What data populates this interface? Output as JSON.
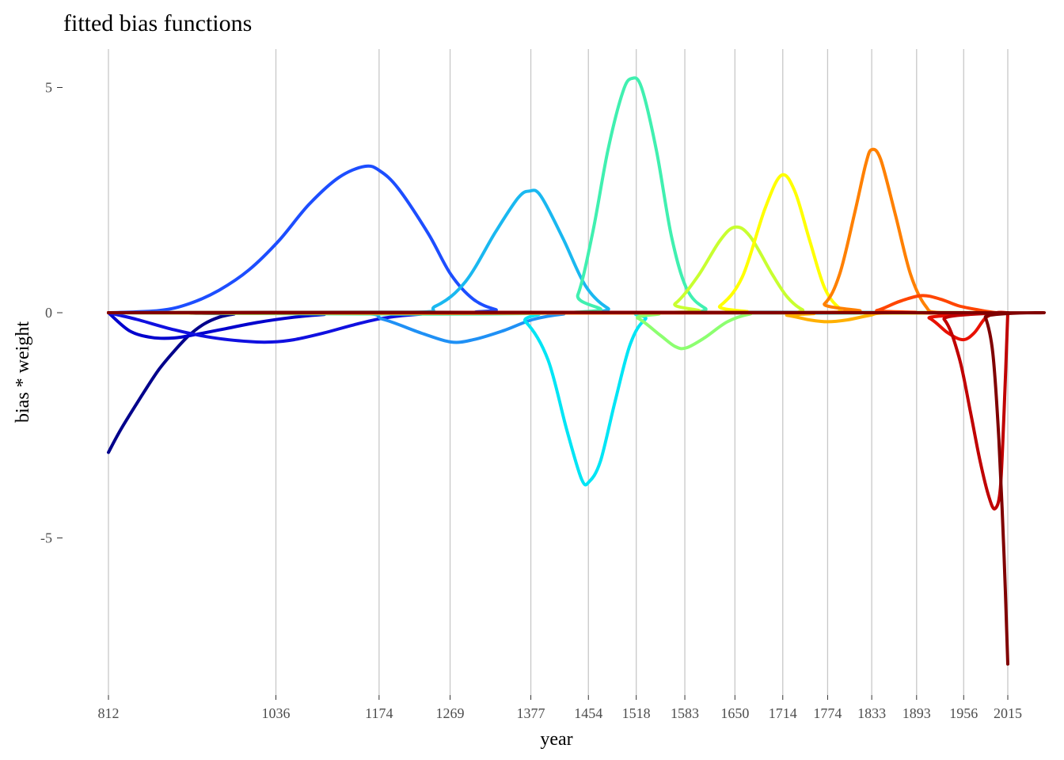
{
  "chart_data": {
    "type": "line",
    "title": "fitted bias functions",
    "xlabel": "year",
    "ylabel": "bias * weight",
    "x_ticks": [
      812,
      1036,
      1174,
      1269,
      1377,
      1454,
      1518,
      1583,
      1650,
      1714,
      1774,
      1833,
      1893,
      1956,
      2015
    ],
    "y_ticks": [
      -5,
      0,
      5
    ],
    "y_tick_labels": [
      "-5",
      "0",
      "5"
    ],
    "xlim": [
      812,
      2015
    ],
    "ylim": [
      -8,
      5.5
    ],
    "grid": "vertical-major",
    "legend": "none",
    "series": [
      {
        "color": "#00008B",
        "points": [
          [
            812,
            -3.1
          ],
          [
            830,
            -2.55
          ],
          [
            860,
            -1.75
          ],
          [
            880,
            -1.25
          ],
          [
            900,
            -0.85
          ],
          [
            920,
            -0.5
          ],
          [
            940,
            -0.25
          ],
          [
            960,
            -0.1
          ],
          [
            980,
            -0.03
          ],
          [
            1000,
            0
          ],
          [
            2015,
            0
          ]
        ]
      },
      {
        "color": "#0000CD",
        "points": [
          [
            812,
            0
          ],
          [
            840,
            -0.4
          ],
          [
            870,
            -0.55
          ],
          [
            900,
            -0.56
          ],
          [
            930,
            -0.48
          ],
          [
            970,
            -0.35
          ],
          [
            1010,
            -0.22
          ],
          [
            1060,
            -0.1
          ],
          [
            1100,
            -0.04
          ],
          [
            1140,
            0
          ],
          [
            2015,
            0
          ]
        ]
      },
      {
        "color": "#1010E0",
        "points": [
          [
            812,
            0
          ],
          [
            850,
            -0.15
          ],
          [
            900,
            -0.38
          ],
          [
            950,
            -0.55
          ],
          [
            1000,
            -0.64
          ],
          [
            1030,
            -0.65
          ],
          [
            1060,
            -0.6
          ],
          [
            1100,
            -0.45
          ],
          [
            1140,
            -0.27
          ],
          [
            1180,
            -0.12
          ],
          [
            1230,
            -0.03
          ],
          [
            1280,
            0
          ],
          [
            2015,
            0
          ]
        ]
      },
      {
        "color": "#1D4EFF",
        "points": [
          [
            812,
            0
          ],
          [
            880,
            0.05
          ],
          [
            920,
            0.2
          ],
          [
            960,
            0.5
          ],
          [
            1000,
            0.95
          ],
          [
            1040,
            1.6
          ],
          [
            1080,
            2.4
          ],
          [
            1120,
            3.0
          ],
          [
            1155,
            3.25
          ],
          [
            1175,
            3.15
          ],
          [
            1200,
            2.75
          ],
          [
            1240,
            1.75
          ],
          [
            1270,
            0.85
          ],
          [
            1300,
            0.3
          ],
          [
            1330,
            0.07
          ],
          [
            1360,
            0
          ],
          [
            2015,
            0
          ]
        ]
      },
      {
        "color": "#1F90F5",
        "points": [
          [
            812,
            0
          ],
          [
            1130,
            0
          ],
          [
            1180,
            -0.15
          ],
          [
            1230,
            -0.45
          ],
          [
            1270,
            -0.65
          ],
          [
            1300,
            -0.6
          ],
          [
            1340,
            -0.4
          ],
          [
            1380,
            -0.15
          ],
          [
            1420,
            -0.03
          ],
          [
            1460,
            0
          ],
          [
            2015,
            0
          ]
        ]
      },
      {
        "color": "#1AB8F0",
        "points": [
          [
            812,
            0
          ],
          [
            1200,
            0
          ],
          [
            1250,
            0.15
          ],
          [
            1290,
            0.7
          ],
          [
            1330,
            1.8
          ],
          [
            1360,
            2.55
          ],
          [
            1375,
            2.7
          ],
          [
            1390,
            2.6
          ],
          [
            1420,
            1.65
          ],
          [
            1450,
            0.6
          ],
          [
            1480,
            0.1
          ],
          [
            1510,
            0
          ],
          [
            2015,
            0
          ]
        ]
      },
      {
        "color": "#00E5F5",
        "points": [
          [
            812,
            0
          ],
          [
            1340,
            0
          ],
          [
            1370,
            -0.2
          ],
          [
            1400,
            -1.05
          ],
          [
            1425,
            -2.6
          ],
          [
            1445,
            -3.7
          ],
          [
            1455,
            -3.75
          ],
          [
            1470,
            -3.3
          ],
          [
            1490,
            -1.95
          ],
          [
            1510,
            -0.7
          ],
          [
            1530,
            -0.15
          ],
          [
            1560,
            0
          ],
          [
            2015,
            0
          ]
        ]
      },
      {
        "color": "#40F0B0",
        "points": [
          [
            812,
            0
          ],
          [
            1420,
            0
          ],
          [
            1440,
            0.4
          ],
          [
            1460,
            1.8
          ],
          [
            1480,
            3.6
          ],
          [
            1500,
            4.9
          ],
          [
            1512,
            5.2
          ],
          [
            1525,
            5.0
          ],
          [
            1545,
            3.6
          ],
          [
            1565,
            1.7
          ],
          [
            1585,
            0.55
          ],
          [
            1610,
            0.1
          ],
          [
            1640,
            0
          ],
          [
            2015,
            0
          ]
        ]
      },
      {
        "color": "#8CFF70",
        "points": [
          [
            812,
            0
          ],
          [
            1490,
            0
          ],
          [
            1520,
            -0.12
          ],
          [
            1550,
            -0.5
          ],
          [
            1570,
            -0.75
          ],
          [
            1585,
            -0.78
          ],
          [
            1610,
            -0.55
          ],
          [
            1640,
            -0.2
          ],
          [
            1670,
            -0.03
          ],
          [
            1700,
            0
          ],
          [
            2015,
            0
          ]
        ]
      },
      {
        "color": "#C8FF30",
        "points": [
          [
            812,
            0
          ],
          [
            1540,
            0
          ],
          [
            1570,
            0.2
          ],
          [
            1600,
            0.8
          ],
          [
            1630,
            1.6
          ],
          [
            1650,
            1.9
          ],
          [
            1670,
            1.7
          ],
          [
            1700,
            0.85
          ],
          [
            1720,
            0.35
          ],
          [
            1740,
            0.07
          ],
          [
            1760,
            0
          ],
          [
            2015,
            0
          ]
        ]
      },
      {
        "color": "#FFFF00",
        "points": [
          [
            812,
            0
          ],
          [
            1600,
            0
          ],
          [
            1630,
            0.15
          ],
          [
            1660,
            0.8
          ],
          [
            1690,
            2.3
          ],
          [
            1712,
            3.05
          ],
          [
            1730,
            2.7
          ],
          [
            1750,
            1.6
          ],
          [
            1770,
            0.55
          ],
          [
            1790,
            0.1
          ],
          [
            1810,
            0
          ],
          [
            2015,
            0
          ]
        ]
      },
      {
        "color": "#FFB000",
        "points": [
          [
            812,
            0
          ],
          [
            1680,
            0
          ],
          [
            1720,
            -0.06
          ],
          [
            1750,
            -0.16
          ],
          [
            1774,
            -0.2
          ],
          [
            1800,
            -0.16
          ],
          [
            1830,
            -0.06
          ],
          [
            1860,
            0
          ],
          [
            2015,
            0
          ]
        ]
      },
      {
        "color": "#FF8000",
        "points": [
          [
            812,
            0
          ],
          [
            1740,
            0
          ],
          [
            1770,
            0.2
          ],
          [
            1790,
            0.85
          ],
          [
            1810,
            2.2
          ],
          [
            1825,
            3.3
          ],
          [
            1833,
            3.62
          ],
          [
            1845,
            3.4
          ],
          [
            1865,
            2.15
          ],
          [
            1885,
            0.85
          ],
          [
            1905,
            0.15
          ],
          [
            1925,
            0
          ],
          [
            2015,
            0
          ]
        ]
      },
      {
        "color": "#FF4500",
        "points": [
          [
            812,
            0
          ],
          [
            1810,
            0
          ],
          [
            1840,
            0.05
          ],
          [
            1870,
            0.25
          ],
          [
            1900,
            0.38
          ],
          [
            1925,
            0.3
          ],
          [
            1950,
            0.15
          ],
          [
            1980,
            0.05
          ],
          [
            2000,
            0
          ],
          [
            2015,
            0
          ]
        ]
      },
      {
        "color": "#E81000",
        "points": [
          [
            812,
            0
          ],
          [
            1880,
            0
          ],
          [
            1910,
            -0.12
          ],
          [
            1935,
            -0.45
          ],
          [
            1955,
            -0.6
          ],
          [
            1970,
            -0.45
          ],
          [
            1985,
            -0.12
          ],
          [
            2000,
            0
          ],
          [
            2015,
            0
          ]
        ]
      },
      {
        "color": "#C00000",
        "points": [
          [
            812,
            0
          ],
          [
            1900,
            0
          ],
          [
            1930,
            -0.15
          ],
          [
            1950,
            -1.0
          ],
          [
            1965,
            -2.2
          ],
          [
            1978,
            -3.3
          ],
          [
            1990,
            -4.1
          ],
          [
            1998,
            -4.35
          ],
          [
            2005,
            -3.9
          ],
          [
            2010,
            -2.2
          ],
          [
            2015,
            0
          ]
        ]
      },
      {
        "color": "#800000",
        "points": [
          [
            812,
            0
          ],
          [
            1975,
            0
          ],
          [
            1985,
            -0.1
          ],
          [
            1995,
            -0.9
          ],
          [
            2003,
            -2.8
          ],
          [
            2010,
            -5.4
          ],
          [
            2015,
            -7.8
          ]
        ]
      }
    ]
  }
}
